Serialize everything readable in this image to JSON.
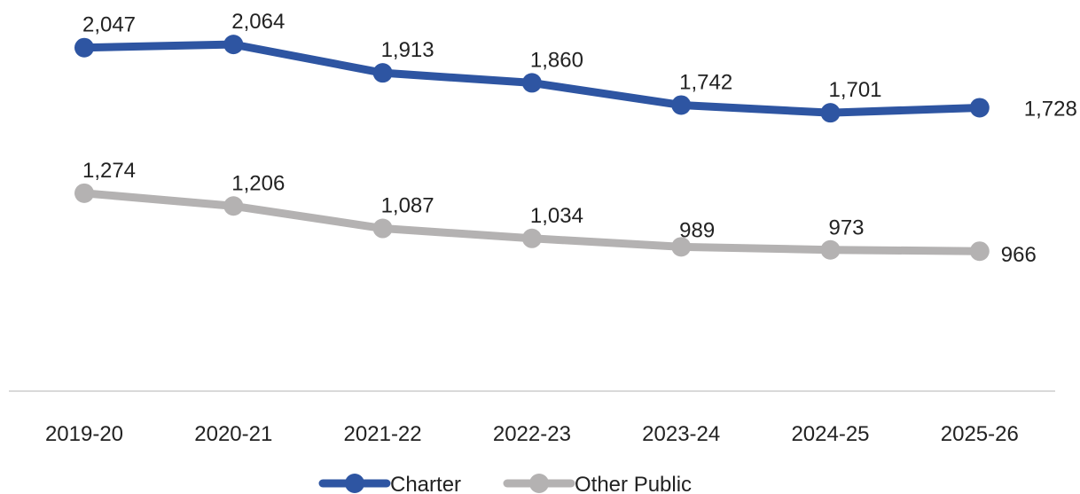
{
  "chart_data": {
    "type": "line",
    "categories": [
      "2019-20",
      "2020-21",
      "2021-22",
      "2022-23",
      "2023-24",
      "2024-25",
      "2025-26"
    ],
    "series": [
      {
        "name": "Charter",
        "color": "#2E55A2",
        "values": [
          2047,
          2064,
          1913,
          1860,
          1742,
          1701,
          1728
        ],
        "labels": [
          "2,047",
          "2,064",
          "1,913",
          "1,860",
          "1,742",
          "1,701",
          "1,728"
        ]
      },
      {
        "name": "Other Public",
        "color": "#B4B2B2",
        "values": [
          1274,
          1206,
          1087,
          1034,
          989,
          973,
          966
        ],
        "labels": [
          "1,274",
          "1,206",
          "1,087",
          "1,034",
          "989",
          "973",
          "966"
        ]
      }
    ],
    "legend": "bottom",
    "grid": false,
    "axis_color": "#D9D9D9"
  }
}
